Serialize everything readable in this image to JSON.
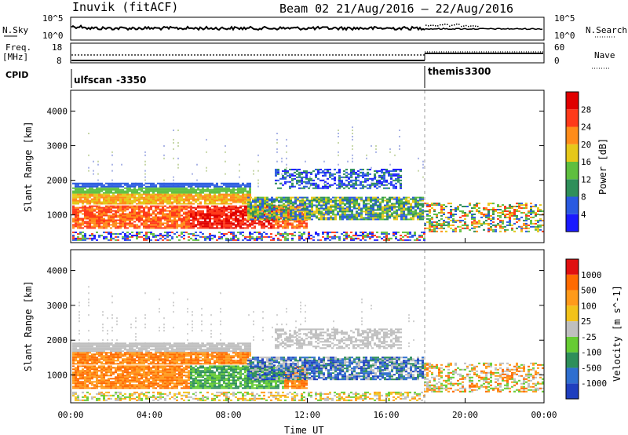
{
  "header": {
    "station": "Inuvik (fitACF)",
    "beam_dates": "Beam 02 21/Aug/2016 – 22/Aug/2016"
  },
  "top_panels": {
    "nsky_label": "N.Sky",
    "nsearch_label": "N.Search",
    "nsky_ticks": [
      "10^5",
      "10^0"
    ],
    "nsearch_ticks": [
      "10^5",
      "10^0"
    ],
    "freq_label": "Freq.",
    "freq_unit": "[MHz]",
    "freq_ticks": [
      "18",
      "8"
    ],
    "nave_label": "Nave",
    "nave_ticks": [
      "60",
      "0"
    ],
    "cpid_label": "CPID",
    "cpid_modes": [
      {
        "name": "ulfscan",
        "id": "-3350"
      },
      {
        "name": "themis",
        "id": "3300"
      }
    ],
    "mode_switch_time": "18:00"
  },
  "x_axis": {
    "label": "Time UT",
    "ticks": [
      "00:00",
      "04:00",
      "08:00",
      "12:00",
      "16:00",
      "20:00",
      "00:00"
    ]
  },
  "chart_data": [
    {
      "type": "heatmap",
      "title": "",
      "ylabel": "Slant Range [km]",
      "xlabel": "",
      "y_ticks": [
        "1000",
        "2000",
        "3000",
        "4000"
      ],
      "ylim": [
        200,
        4600
      ],
      "xlim_hours": [
        0,
        24
      ],
      "colorbar": {
        "label": "Power [dB]",
        "ticks": [
          "4",
          "8",
          "12",
          "16",
          "20",
          "24",
          "28"
        ],
        "colors": [
          "#1a1aff",
          "#2a5ae0",
          "#2f8f5a",
          "#5fbf3f",
          "#e6c81a",
          "#ff8c1a",
          "#ff3a1a",
          "#e00000"
        ]
      }
    },
    {
      "type": "heatmap",
      "title": "",
      "ylabel": "Slant Range [km]",
      "xlabel": "Time UT",
      "y_ticks": [
        "1000",
        "2000",
        "3000",
        "4000"
      ],
      "ylim": [
        200,
        4600
      ],
      "xlim_hours": [
        0,
        24
      ],
      "colorbar": {
        "label": "Velocity [m s^-1]",
        "ticks": [
          "1000",
          "500",
          "100",
          "25",
          "-25",
          "-100",
          "-500",
          "-1000"
        ],
        "colors": [
          "#1f3fbf",
          "#2f6fd0",
          "#2e8f5a",
          "#66cc33",
          "#bfbfbf",
          "#f2c21a",
          "#ff9a1a",
          "#ff6a00",
          "#e01010"
        ]
      }
    }
  ]
}
